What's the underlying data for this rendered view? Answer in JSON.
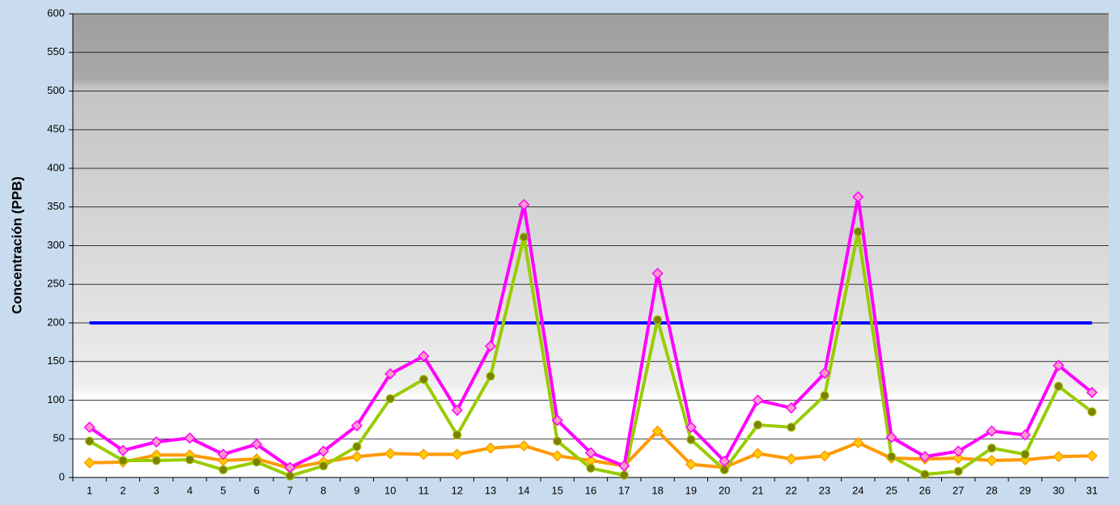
{
  "chart_data": {
    "type": "line",
    "y_label": "Concentración  (PPB)",
    "categories": [
      "1",
      "2",
      "3",
      "4",
      "5",
      "6",
      "7",
      "8",
      "9",
      "10",
      "11",
      "12",
      "13",
      "14",
      "15",
      "16",
      "17",
      "18",
      "19",
      "20",
      "21",
      "22",
      "23",
      "24",
      "25",
      "26",
      "27",
      "28",
      "29",
      "30",
      "31"
    ],
    "series": [
      {
        "color": "#0000ff",
        "marker": "none",
        "values": [
          200,
          200,
          200,
          200,
          200,
          200,
          200,
          200,
          200,
          200,
          200,
          200,
          200,
          200,
          200,
          200,
          200,
          200,
          200,
          200,
          200,
          200,
          200,
          200,
          200,
          200,
          200,
          200,
          200,
          200,
          200
        ]
      },
      {
        "color": "#ff9900",
        "marker": "diamond",
        "marker_fill": "#ffcc00",
        "values": [
          19,
          20,
          29,
          29,
          22,
          24,
          12,
          20,
          27,
          31,
          30,
          30,
          38,
          41,
          28,
          22,
          15,
          60,
          17,
          13,
          31,
          24,
          28,
          45,
          25,
          24,
          25,
          22,
          23,
          27,
          28
        ]
      },
      {
        "color": "#99cc00",
        "marker": "circle",
        "marker_fill": "#808000",
        "values": [
          47,
          22,
          22,
          23,
          10,
          20,
          2,
          15,
          40,
          102,
          127,
          55,
          131,
          311,
          47,
          12,
          3,
          204,
          49,
          10,
          68,
          65,
          106,
          318,
          27,
          4,
          8,
          38,
          30,
          118,
          85
        ]
      },
      {
        "color": "#ff00ff",
        "marker": "diamond",
        "marker_fill": "#ff99cc",
        "values": [
          65,
          35,
          46,
          51,
          30,
          43,
          13,
          34,
          67,
          134,
          157,
          87,
          170,
          353,
          74,
          32,
          15,
          264,
          65,
          21,
          100,
          90,
          135,
          363,
          52,
          27,
          34,
          60,
          55,
          145,
          110
        ]
      }
    ],
    "ylim": [
      0,
      600
    ],
    "yticks": [
      0,
      50,
      100,
      150,
      200,
      250,
      300,
      350,
      400,
      450,
      500,
      550,
      600
    ],
    "grid": true
  }
}
